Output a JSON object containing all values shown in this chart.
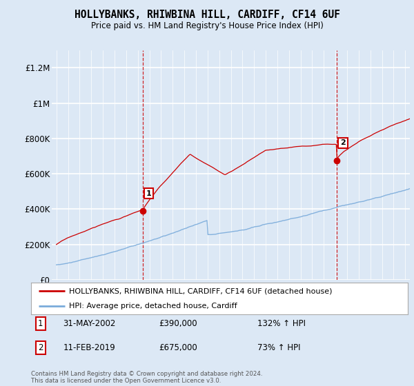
{
  "title": "HOLLYBANKS, RHIWBINA HILL, CARDIFF, CF14 6UF",
  "subtitle": "Price paid vs. HM Land Registry's House Price Index (HPI)",
  "ylim": [
    0,
    1300000
  ],
  "yticks": [
    0,
    200000,
    400000,
    600000,
    800000,
    1000000,
    1200000
  ],
  "ytick_labels": [
    "£0",
    "£200K",
    "£400K",
    "£600K",
    "£800K",
    "£1M",
    "£1.2M"
  ],
  "sale1_x": 2002.42,
  "sale1_price": 390000,
  "sale2_x": 2019.12,
  "sale2_price": 675000,
  "sale1_date_str": "31-MAY-2002",
  "sale1_price_str": "£390,000",
  "sale1_hpi_str": "132% ↑ HPI",
  "sale2_date_str": "11-FEB-2019",
  "sale2_price_str": "£675,000",
  "sale2_hpi_str": "73% ↑ HPI",
  "hpi_color": "#7aabdb",
  "price_color": "#cc0000",
  "background_color": "#dce8f5",
  "legend_line1": "HOLLYBANKS, RHIWBINA HILL, CARDIFF, CF14 6UF (detached house)",
  "legend_line2": "HPI: Average price, detached house, Cardiff",
  "footnote": "Contains HM Land Registry data © Crown copyright and database right 2024.\nThis data is licensed under the Open Government Licence v3.0.",
  "xstart": 1995,
  "xend": 2025
}
